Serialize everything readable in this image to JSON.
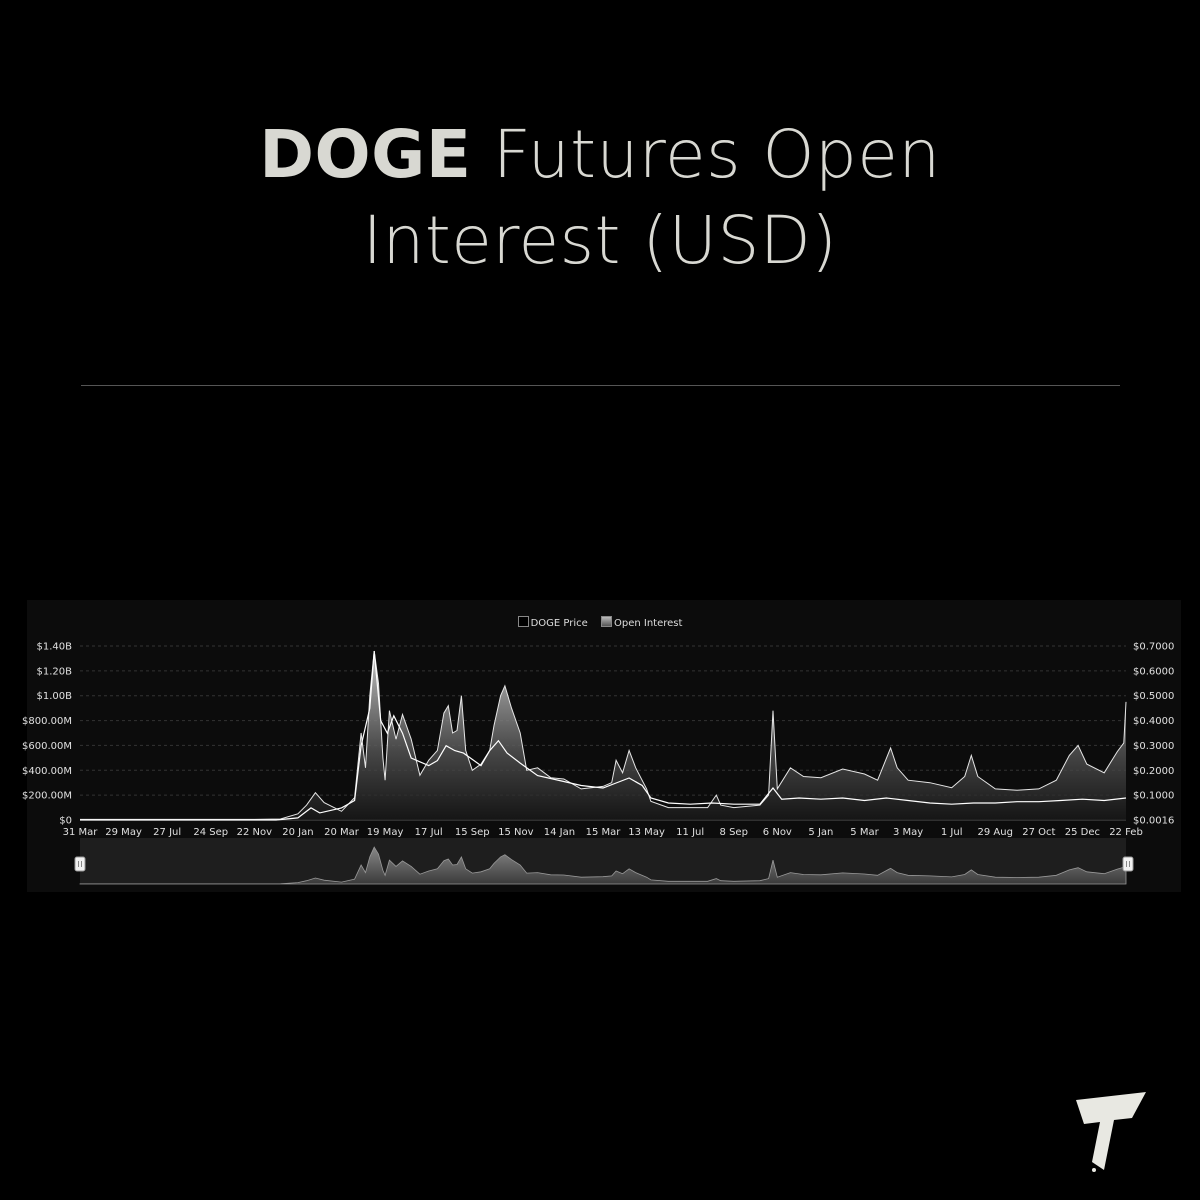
{
  "title": {
    "bold": "DOGE",
    "rest_line1": " Futures Open",
    "line2": "Interest (USD)"
  },
  "legend": {
    "price_label": "DOGE Price",
    "oi_label": "Open Interest"
  },
  "colors": {
    "background": "#000000",
    "panel": "#0c0c0c",
    "title": "#d8d8d2",
    "oi_fill_top": "#c8c8c8",
    "oi_fill_bottom": "#2a2a2a",
    "price_line": "#ffffff",
    "logo": "#e8e8e2"
  },
  "icons": {
    "logo": "brand-logo-icon",
    "range_left": "range-handle-left-icon",
    "range_right": "range-handle-right-icon"
  },
  "chart_data": {
    "type": "area",
    "title": "",
    "xlabel": "",
    "ylabel": "",
    "x_ticks": [
      "31 Mar",
      "29 May",
      "27 Jul",
      "24 Sep",
      "22 Nov",
      "20 Jan",
      "20 Mar",
      "19 May",
      "17 Jul",
      "15 Sep",
      "15 Nov",
      "14 Jan",
      "15 Mar",
      "13 May",
      "11 Jul",
      "8 Sep",
      "6 Nov",
      "5 Jan",
      "5 Mar",
      "3 May",
      "1 Jul",
      "29 Aug",
      "27 Oct",
      "25 Dec",
      "22 Feb"
    ],
    "y_left_ticks": [
      "$0",
      "$200.00M",
      "$400.00M",
      "$600.00M",
      "$800.00M",
      "$1.00B",
      "$1.20B",
      "$1.40B"
    ],
    "y_left_range": [
      0,
      1400000000
    ],
    "y_right_ticks": [
      "$0.0016",
      "$0.1000",
      "$0.2000",
      "$0.3000",
      "$0.4000",
      "$0.5000",
      "$0.6000",
      "$0.7000"
    ],
    "y_right_range": [
      0.0016,
      0.7
    ],
    "grid": true,
    "legend_position": "top-center",
    "x_index_range": [
      0,
      24
    ],
    "series": [
      {
        "name": "Open Interest",
        "axis": "left",
        "points": [
          [
            0,
            5000000
          ],
          [
            1,
            5000000
          ],
          [
            2,
            5000000
          ],
          [
            3,
            5000000
          ],
          [
            4,
            5000000
          ],
          [
            4.6,
            8000000
          ],
          [
            5,
            50000000
          ],
          [
            5.2,
            120000000
          ],
          [
            5.4,
            220000000
          ],
          [
            5.6,
            140000000
          ],
          [
            6,
            70000000
          ],
          [
            6.3,
            180000000
          ],
          [
            6.45,
            700000000
          ],
          [
            6.55,
            420000000
          ],
          [
            6.65,
            1000000000
          ],
          [
            6.75,
            1360000000
          ],
          [
            6.85,
            1100000000
          ],
          [
            6.95,
            500000000
          ],
          [
            7,
            320000000
          ],
          [
            7.1,
            880000000
          ],
          [
            7.25,
            650000000
          ],
          [
            7.4,
            850000000
          ],
          [
            7.6,
            650000000
          ],
          [
            7.8,
            360000000
          ],
          [
            8.0,
            480000000
          ],
          [
            8.2,
            560000000
          ],
          [
            8.35,
            860000000
          ],
          [
            8.45,
            920000000
          ],
          [
            8.55,
            700000000
          ],
          [
            8.65,
            720000000
          ],
          [
            8.75,
            1000000000
          ],
          [
            8.85,
            560000000
          ],
          [
            9.0,
            400000000
          ],
          [
            9.2,
            450000000
          ],
          [
            9.4,
            560000000
          ],
          [
            9.5,
            760000000
          ],
          [
            9.65,
            1000000000
          ],
          [
            9.75,
            1080000000
          ],
          [
            9.9,
            900000000
          ],
          [
            10.1,
            700000000
          ],
          [
            10.25,
            400000000
          ],
          [
            10.5,
            420000000
          ],
          [
            10.8,
            340000000
          ],
          [
            11.1,
            330000000
          ],
          [
            11.5,
            250000000
          ],
          [
            12.0,
            270000000
          ],
          [
            12.2,
            300000000
          ],
          [
            12.3,
            480000000
          ],
          [
            12.45,
            380000000
          ],
          [
            12.6,
            560000000
          ],
          [
            12.75,
            420000000
          ],
          [
            13.0,
            250000000
          ],
          [
            13.1,
            150000000
          ],
          [
            13.5,
            100000000
          ],
          [
            14.0,
            100000000
          ],
          [
            14.4,
            100000000
          ],
          [
            14.6,
            200000000
          ],
          [
            14.7,
            120000000
          ],
          [
            15.0,
            100000000
          ],
          [
            15.6,
            120000000
          ],
          [
            15.8,
            200000000
          ],
          [
            15.9,
            880000000
          ],
          [
            16.0,
            250000000
          ],
          [
            16.3,
            420000000
          ],
          [
            16.6,
            350000000
          ],
          [
            17.0,
            340000000
          ],
          [
            17.5,
            410000000
          ],
          [
            18.0,
            370000000
          ],
          [
            18.3,
            320000000
          ],
          [
            18.6,
            580000000
          ],
          [
            18.75,
            420000000
          ],
          [
            19.0,
            320000000
          ],
          [
            19.5,
            300000000
          ],
          [
            20.0,
            260000000
          ],
          [
            20.3,
            350000000
          ],
          [
            20.45,
            520000000
          ],
          [
            20.6,
            350000000
          ],
          [
            21.0,
            250000000
          ],
          [
            21.5,
            240000000
          ],
          [
            22.0,
            250000000
          ],
          [
            22.4,
            320000000
          ],
          [
            22.7,
            520000000
          ],
          [
            22.9,
            600000000
          ],
          [
            23.1,
            450000000
          ],
          [
            23.5,
            380000000
          ],
          [
            23.8,
            550000000
          ],
          [
            23.95,
            620000000
          ],
          [
            24.0,
            950000000
          ]
        ]
      },
      {
        "name": "DOGE Price",
        "axis": "right",
        "points": [
          [
            0,
            0.0016
          ],
          [
            4.5,
            0.0016
          ],
          [
            5,
            0.01
          ],
          [
            5.3,
            0.05
          ],
          [
            5.5,
            0.03
          ],
          [
            6,
            0.05
          ],
          [
            6.3,
            0.08
          ],
          [
            6.45,
            0.3
          ],
          [
            6.65,
            0.45
          ],
          [
            6.75,
            0.68
          ],
          [
            6.9,
            0.4
          ],
          [
            7.05,
            0.35
          ],
          [
            7.2,
            0.42
          ],
          [
            7.4,
            0.35
          ],
          [
            7.6,
            0.25
          ],
          [
            8.0,
            0.22
          ],
          [
            8.2,
            0.24
          ],
          [
            8.4,
            0.3
          ],
          [
            8.6,
            0.28
          ],
          [
            8.8,
            0.27
          ],
          [
            9.2,
            0.22
          ],
          [
            9.4,
            0.28
          ],
          [
            9.6,
            0.32
          ],
          [
            9.8,
            0.27
          ],
          [
            10.1,
            0.23
          ],
          [
            10.5,
            0.18
          ],
          [
            11.0,
            0.16
          ],
          [
            11.5,
            0.14
          ],
          [
            12.0,
            0.13
          ],
          [
            12.3,
            0.15
          ],
          [
            12.6,
            0.17
          ],
          [
            12.9,
            0.14
          ],
          [
            13.1,
            0.09
          ],
          [
            13.5,
            0.07
          ],
          [
            14.0,
            0.065
          ],
          [
            14.5,
            0.07
          ],
          [
            15.0,
            0.065
          ],
          [
            15.6,
            0.065
          ],
          [
            15.9,
            0.13
          ],
          [
            16.1,
            0.085
          ],
          [
            16.5,
            0.09
          ],
          [
            17.0,
            0.085
          ],
          [
            17.5,
            0.09
          ],
          [
            18.0,
            0.08
          ],
          [
            18.5,
            0.09
          ],
          [
            19.0,
            0.08
          ],
          [
            19.5,
            0.07
          ],
          [
            20.0,
            0.065
          ],
          [
            20.5,
            0.07
          ],
          [
            21.0,
            0.07
          ],
          [
            21.5,
            0.075
          ],
          [
            22.0,
            0.075
          ],
          [
            22.5,
            0.08
          ],
          [
            23.0,
            0.085
          ],
          [
            23.5,
            0.08
          ],
          [
            24.0,
            0.09
          ]
        ]
      }
    ],
    "navigator": {
      "series": "Open Interest",
      "range": [
        0,
        24
      ]
    }
  }
}
